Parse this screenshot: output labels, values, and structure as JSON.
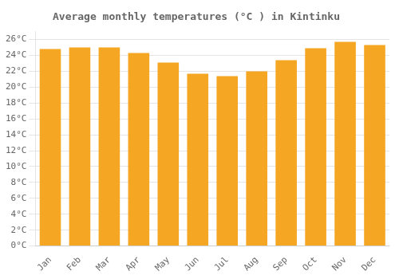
{
  "chart_data": {
    "type": "bar",
    "title": "Average monthly temperatures (°C ) in Kintinku",
    "categories": [
      "Jan",
      "Feb",
      "Mar",
      "Apr",
      "May",
      "Jun",
      "Jul",
      "Aug",
      "Sep",
      "Oct",
      "Nov",
      "Dec"
    ],
    "values": [
      24.8,
      25.0,
      25.0,
      24.3,
      23.1,
      21.7,
      21.4,
      22.0,
      23.4,
      24.9,
      25.7,
      25.3
    ],
    "color": "#F5A623",
    "ylim": [
      0,
      27
    ],
    "yticks": [
      {
        "value": 0,
        "label": "0°C"
      },
      {
        "value": 2,
        "label": "2°C"
      },
      {
        "value": 4,
        "label": "4°C"
      },
      {
        "value": 6,
        "label": "6°C"
      },
      {
        "value": 8,
        "label": "8°C"
      },
      {
        "value": 10,
        "label": "10°C"
      },
      {
        "value": 12,
        "label": "12°C"
      },
      {
        "value": 14,
        "label": "14°C"
      },
      {
        "value": 16,
        "label": "16°C"
      },
      {
        "value": 18,
        "label": "18°C"
      },
      {
        "value": 20,
        "label": "20°C"
      },
      {
        "value": 22,
        "label": "22°C"
      },
      {
        "value": 24,
        "label": "24°C"
      },
      {
        "value": 26,
        "label": "26°C"
      }
    ],
    "grid": true
  }
}
